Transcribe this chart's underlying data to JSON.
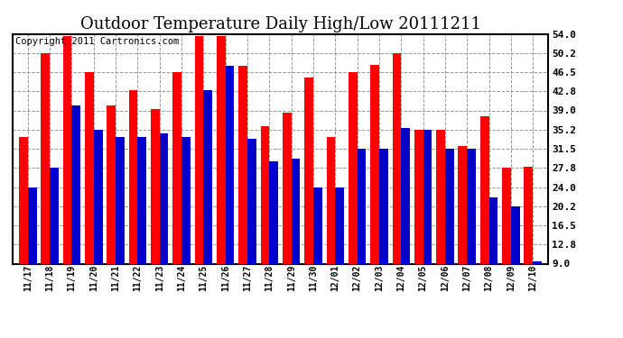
{
  "title": "Outdoor Temperature Daily High/Low 20111211",
  "copyright": "Copyright 2011 Cartronics.com",
  "dates": [
    "11/17",
    "11/18",
    "11/19",
    "11/20",
    "11/21",
    "11/22",
    "11/23",
    "11/24",
    "11/25",
    "11/26",
    "11/27",
    "11/28",
    "11/29",
    "11/30",
    "12/01",
    "12/02",
    "12/03",
    "12/04",
    "12/05",
    "12/06",
    "12/07",
    "12/08",
    "12/09",
    "12/10"
  ],
  "highs": [
    33.8,
    50.2,
    53.6,
    46.5,
    40.0,
    43.0,
    39.2,
    46.5,
    53.6,
    53.6,
    47.8,
    36.0,
    38.5,
    45.5,
    33.8,
    46.5,
    48.0,
    50.2,
    35.2,
    35.2,
    32.0,
    37.8,
    27.8,
    28.0
  ],
  "lows": [
    24.0,
    27.8,
    40.0,
    35.2,
    33.8,
    33.8,
    34.5,
    33.8,
    43.0,
    47.8,
    33.5,
    29.0,
    29.5,
    24.0,
    24.0,
    31.5,
    31.5,
    35.5,
    35.2,
    31.5,
    31.5,
    22.0,
    20.2,
    9.5
  ],
  "yticks": [
    9.0,
    12.8,
    16.5,
    20.2,
    24.0,
    27.8,
    31.5,
    35.2,
    39.0,
    42.8,
    46.5,
    50.2,
    54.0
  ],
  "ymin": 9.0,
  "ymax": 54.0,
  "bar_color_high": "#ff0000",
  "bar_color_low": "#0000cc",
  "bg_color": "#ffffff",
  "grid_color": "#999999",
  "title_fontsize": 13,
  "copyright_fontsize": 7.5
}
